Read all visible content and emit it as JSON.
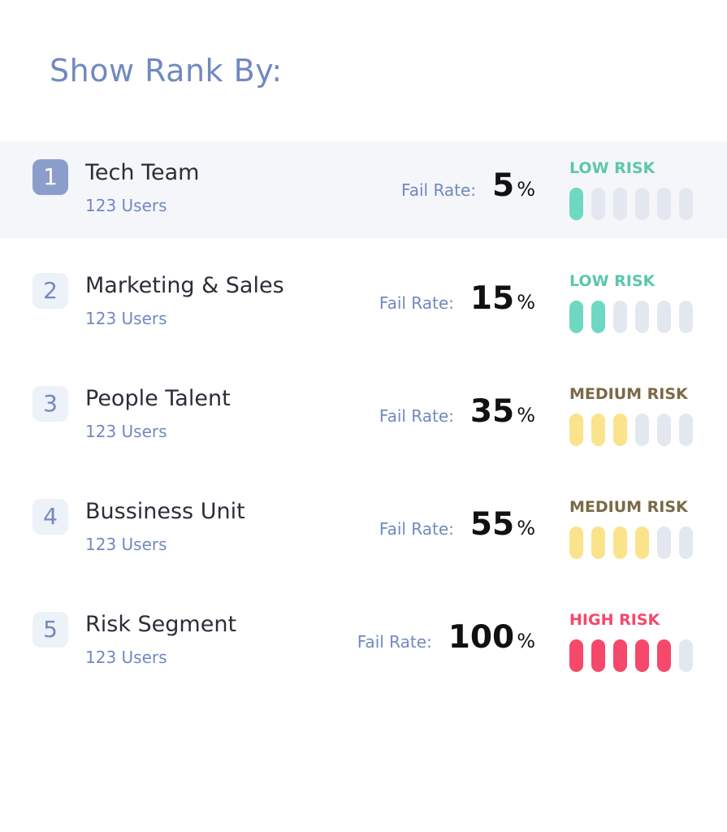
{
  "header": {
    "title": "Show Rank By:"
  },
  "fail_rate_label": "Fail Rate:",
  "segments": [
    {
      "rank": "1",
      "name": "Tech Team",
      "users": "123 Users",
      "fail_rate": "5",
      "unit": "%",
      "risk_label": "LOW RISK",
      "risk_color": "#6fd8c2",
      "risk_text_color": "#5cc7ad",
      "filled": 1,
      "total": 6,
      "selected": true
    },
    {
      "rank": "2",
      "name": "Marketing & Sales",
      "users": "123 Users",
      "fail_rate": "15",
      "unit": "%",
      "risk_label": "LOW RISK",
      "risk_color": "#6fd8c2",
      "risk_text_color": "#5cc7ad",
      "filled": 2,
      "total": 6,
      "selected": false
    },
    {
      "rank": "3",
      "name": "People Talent",
      "users": "123 Users",
      "fail_rate": "35",
      "unit": "%",
      "risk_label": "MEDIUM RISK",
      "risk_color": "#fbe38c",
      "risk_text_color": "#7a6a46",
      "filled": 3,
      "total": 6,
      "selected": false
    },
    {
      "rank": "4",
      "name": "Bussiness Unit",
      "users": "123 Users",
      "fail_rate": "55",
      "unit": "%",
      "risk_label": "MEDIUM RISK",
      "risk_color": "#fbe38c",
      "risk_text_color": "#7a6a46",
      "filled": 4,
      "total": 6,
      "selected": false
    },
    {
      "rank": "5",
      "name": "Risk Segment",
      "users": "123 Users",
      "fail_rate": "100",
      "unit": "%",
      "risk_label": "HIGH RISK",
      "risk_color": "#f5486a",
      "risk_text_color": "#f5486a",
      "filled": 5,
      "total": 6,
      "selected": false
    }
  ]
}
